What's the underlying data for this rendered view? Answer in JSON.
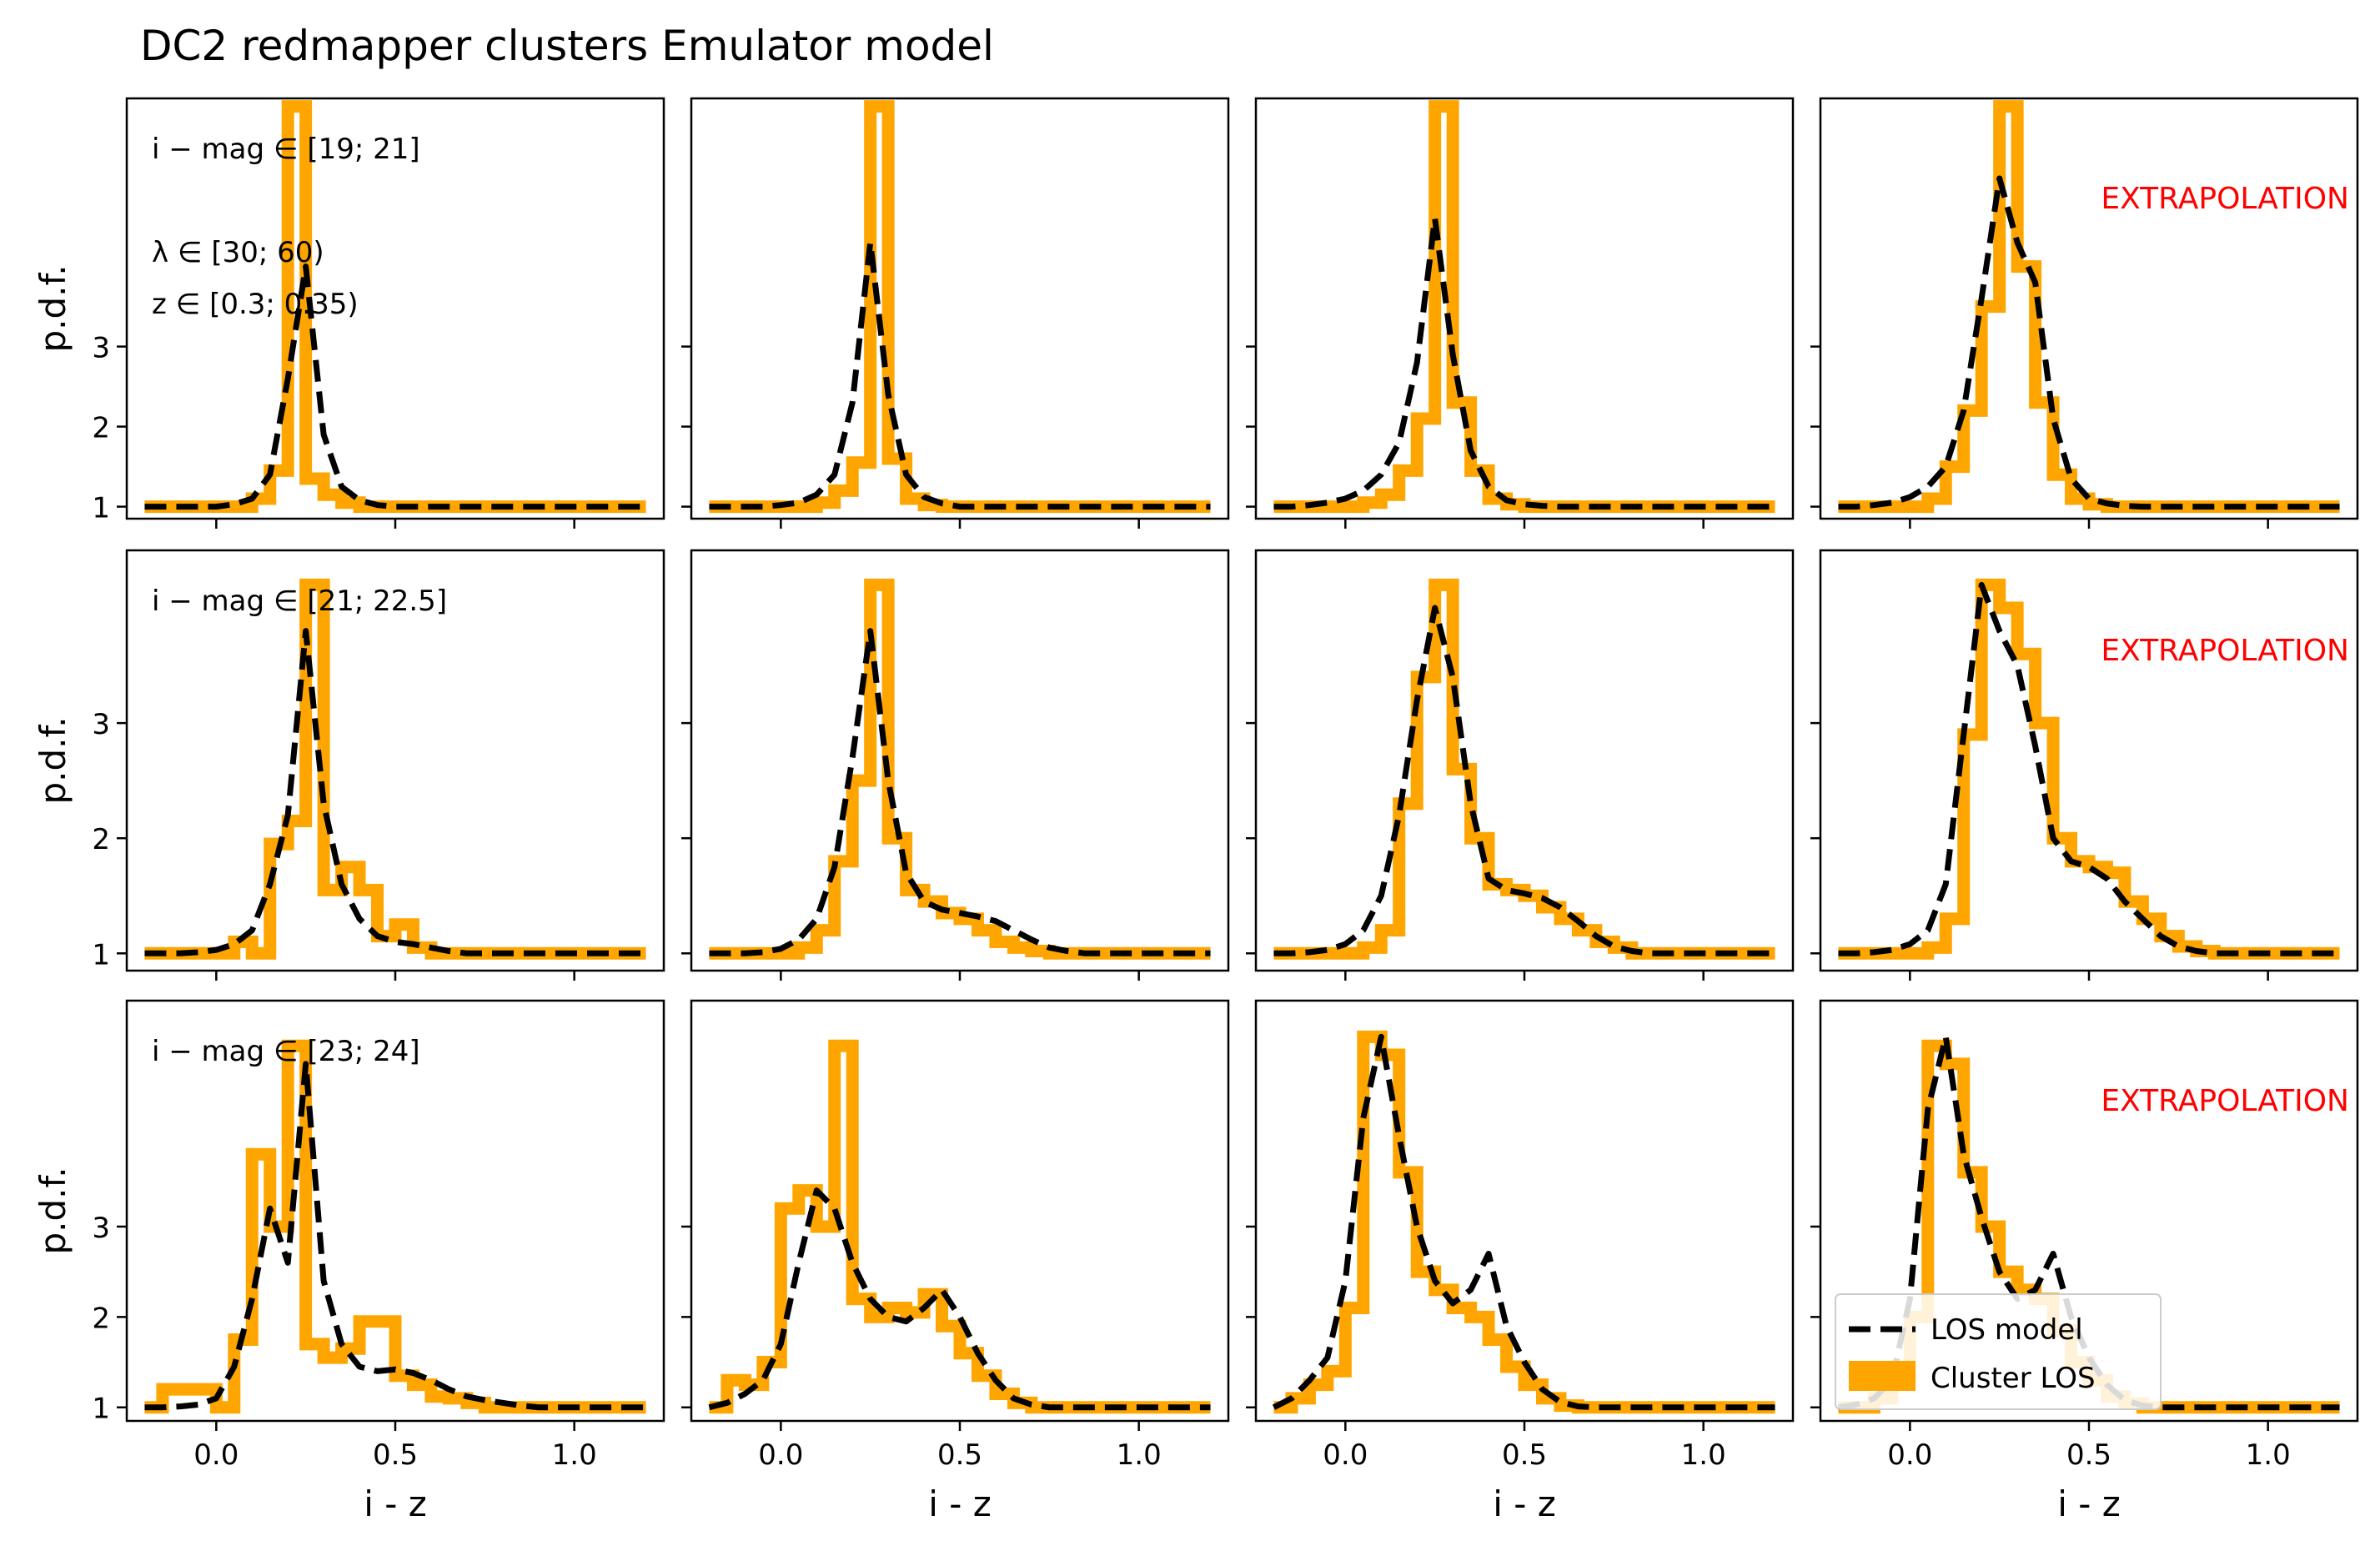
{
  "figure": {
    "title": "DC2 redmapper clusters Emulator model",
    "legend": {
      "placement": "lower-left (bottom-right panel)",
      "model_label": "LOS model",
      "hist_label": "Cluster LOS"
    },
    "extrapolation_label": "EXTRAPOLATION",
    "colors": {
      "hist": "#FFA500",
      "model": "#000000",
      "extrapolation": "#FF0000",
      "axes": "#000000"
    }
  },
  "rows": [
    {
      "ylabel": "p.d.f.",
      "annotation": [
        "i − mag ∈ [19; 21]",
        "",
        "λ ∈ [30; 60)",
        "z ∈ [0.3; 0.35)"
      ]
    },
    {
      "ylabel": "p.d.f.",
      "annotation": [
        "i − mag ∈ [21; 22.5]"
      ]
    },
    {
      "ylabel": "p.d.f.",
      "annotation": [
        "i − mag ∈ [23; 24]"
      ]
    }
  ],
  "columns": [
    {
      "xlabel": "i - z",
      "extrapolation": false
    },
    {
      "xlabel": "i - z",
      "extrapolation": false
    },
    {
      "xlabel": "i - z",
      "extrapolation": false
    },
    {
      "xlabel": "i - z",
      "extrapolation": true
    }
  ],
  "axes": {
    "xlim": [
      -0.25,
      1.25
    ],
    "xticks": [
      "0.0",
      "0.5",
      "1.0"
    ],
    "xtick_values": [
      0.0,
      0.5,
      1.0
    ],
    "yticks": [
      "1",
      "2",
      "3"
    ],
    "ytick_values": [
      1,
      2,
      3
    ],
    "ylim": [
      [
        0.85,
        6.1
      ],
      [
        0.85,
        4.5
      ],
      [
        0.85,
        5.5
      ]
    ]
  },
  "chart_data": {
    "type": "line",
    "grid": false,
    "layout": "3x4 small multiples",
    "xlabel": "i - z",
    "ylabel": "p.d.f.",
    "bin_edges": [
      -0.2,
      -0.15,
      -0.1,
      -0.05,
      0.0,
      0.05,
      0.1,
      0.15,
      0.2,
      0.25,
      0.3,
      0.35,
      0.4,
      0.45,
      0.5,
      0.55,
      0.6,
      0.65,
      0.7,
      0.75,
      0.8,
      0.85,
      0.9,
      0.95,
      1.0,
      1.05,
      1.1,
      1.15,
      1.2
    ],
    "model_x": [
      -0.2,
      -0.15,
      -0.1,
      -0.05,
      0.0,
      0.05,
      0.1,
      0.15,
      0.2,
      0.25,
      0.3,
      0.35,
      0.4,
      0.45,
      0.5,
      0.55,
      0.6,
      0.65,
      0.7,
      0.75,
      0.8,
      0.85,
      0.9,
      0.95,
      1.0,
      1.05,
      1.1,
      1.15,
      1.2
    ],
    "panels": [
      {
        "row": 0,
        "col": 0,
        "hist": [
          1.0,
          1.0,
          1.0,
          1.0,
          1.0,
          1.0,
          1.1,
          1.45,
          6.0,
          1.35,
          1.15,
          1.05,
          1.0,
          1.0,
          1.0,
          1.0,
          1.0,
          1.0,
          1.0,
          1.0,
          1.0,
          1.0,
          1.0,
          1.0,
          1.0,
          1.0,
          1.0,
          1.0
        ],
        "model": [
          1.0,
          1.0,
          1.0,
          1.0,
          1.0,
          1.03,
          1.1,
          1.4,
          2.6,
          4.0,
          1.9,
          1.25,
          1.08,
          1.02,
          1.0,
          1.0,
          1.0,
          1.0,
          1.0,
          1.0,
          1.0,
          1.0,
          1.0,
          1.0,
          1.0,
          1.0,
          1.0,
          1.0,
          1.0
        ]
      },
      {
        "row": 0,
        "col": 1,
        "hist": [
          1.0,
          1.0,
          1.0,
          1.0,
          1.0,
          1.0,
          1.05,
          1.2,
          1.55,
          6.0,
          1.6,
          1.1,
          1.02,
          1.0,
          1.0,
          1.0,
          1.0,
          1.0,
          1.0,
          1.0,
          1.0,
          1.0,
          1.0,
          1.0,
          1.0,
          1.0,
          1.0,
          1.0
        ],
        "model": [
          1.0,
          1.0,
          1.0,
          1.0,
          1.02,
          1.05,
          1.15,
          1.4,
          2.3,
          4.3,
          2.4,
          1.4,
          1.12,
          1.04,
          1.0,
          1.0,
          1.0,
          1.0,
          1.0,
          1.0,
          1.0,
          1.0,
          1.0,
          1.0,
          1.0,
          1.0,
          1.0,
          1.0,
          1.0
        ]
      },
      {
        "row": 0,
        "col": 2,
        "hist": [
          1.0,
          1.0,
          1.0,
          1.0,
          1.0,
          1.05,
          1.15,
          1.45,
          2.1,
          6.0,
          2.3,
          1.45,
          1.1,
          1.03,
          1.0,
          1.0,
          1.0,
          1.0,
          1.0,
          1.0,
          1.0,
          1.0,
          1.0,
          1.0,
          1.0,
          1.0,
          1.0,
          1.0
        ],
        "model": [
          1.0,
          1.0,
          1.02,
          1.05,
          1.1,
          1.2,
          1.4,
          1.8,
          2.8,
          4.6,
          2.9,
          1.7,
          1.25,
          1.08,
          1.03,
          1.01,
          1.0,
          1.0,
          1.0,
          1.0,
          1.0,
          1.0,
          1.0,
          1.0,
          1.0,
          1.0,
          1.0,
          1.0,
          1.0
        ]
      },
      {
        "row": 0,
        "col": 3,
        "hist": [
          1.0,
          1.0,
          1.0,
          1.0,
          1.0,
          1.1,
          1.5,
          2.2,
          3.5,
          6.0,
          4.0,
          2.3,
          1.4,
          1.1,
          1.03,
          1.0,
          1.0,
          1.0,
          1.0,
          1.0,
          1.0,
          1.0,
          1.0,
          1.0,
          1.0,
          1.0,
          1.0,
          1.0
        ],
        "model": [
          1.0,
          1.0,
          1.02,
          1.05,
          1.12,
          1.25,
          1.5,
          2.2,
          3.6,
          5.1,
          4.3,
          3.8,
          2.1,
          1.35,
          1.1,
          1.04,
          1.01,
          1.0,
          1.0,
          1.0,
          1.0,
          1.0,
          1.0,
          1.0,
          1.0,
          1.0,
          1.0,
          1.0,
          1.0
        ]
      },
      {
        "row": 1,
        "col": 0,
        "hist": [
          1.0,
          1.0,
          1.0,
          1.0,
          1.0,
          1.1,
          1.0,
          1.95,
          2.15,
          4.2,
          1.55,
          1.75,
          1.55,
          1.15,
          1.25,
          1.05,
          1.0,
          1.0,
          1.0,
          1.0,
          1.0,
          1.0,
          1.0,
          1.0,
          1.0,
          1.0,
          1.0,
          1.0
        ],
        "model": [
          1.0,
          1.0,
          1.0,
          1.01,
          1.03,
          1.08,
          1.2,
          1.6,
          2.2,
          3.8,
          2.3,
          1.6,
          1.3,
          1.15,
          1.1,
          1.08,
          1.05,
          1.02,
          1.0,
          1.0,
          1.0,
          1.0,
          1.0,
          1.0,
          1.0,
          1.0,
          1.0,
          1.0,
          1.0
        ]
      },
      {
        "row": 1,
        "col": 1,
        "hist": [
          1.0,
          1.0,
          1.0,
          1.0,
          1.0,
          1.05,
          1.2,
          1.8,
          2.5,
          4.2,
          2.0,
          1.55,
          1.45,
          1.35,
          1.3,
          1.2,
          1.1,
          1.05,
          1.02,
          1.0,
          1.0,
          1.0,
          1.0,
          1.0,
          1.0,
          1.0,
          1.0,
          1.0
        ],
        "model": [
          1.0,
          1.0,
          1.0,
          1.01,
          1.04,
          1.12,
          1.3,
          1.75,
          2.7,
          3.8,
          2.5,
          1.7,
          1.45,
          1.38,
          1.35,
          1.32,
          1.28,
          1.2,
          1.12,
          1.05,
          1.02,
          1.0,
          1.0,
          1.0,
          1.0,
          1.0,
          1.0,
          1.0,
          1.0
        ]
      },
      {
        "row": 1,
        "col": 2,
        "hist": [
          1.0,
          1.0,
          1.0,
          1.0,
          1.0,
          1.05,
          1.2,
          2.3,
          3.4,
          4.2,
          2.6,
          2.0,
          1.6,
          1.55,
          1.5,
          1.4,
          1.3,
          1.2,
          1.1,
          1.05,
          1.0,
          1.0,
          1.0,
          1.0,
          1.0,
          1.0,
          1.0,
          1.0
        ],
        "model": [
          1.0,
          1.0,
          1.01,
          1.03,
          1.08,
          1.2,
          1.5,
          2.2,
          3.2,
          4.0,
          3.4,
          2.3,
          1.65,
          1.55,
          1.52,
          1.48,
          1.4,
          1.28,
          1.15,
          1.06,
          1.02,
          1.0,
          1.0,
          1.0,
          1.0,
          1.0,
          1.0,
          1.0,
          1.0
        ]
      },
      {
        "row": 1,
        "col": 3,
        "hist": [
          1.0,
          1.0,
          1.0,
          1.0,
          1.0,
          1.05,
          1.3,
          2.9,
          4.2,
          4.0,
          3.6,
          3.0,
          2.0,
          1.8,
          1.75,
          1.7,
          1.45,
          1.3,
          1.15,
          1.06,
          1.02,
          1.0,
          1.0,
          1.0,
          1.0,
          1.0,
          1.0,
          1.0
        ],
        "model": [
          1.0,
          1.0,
          1.01,
          1.03,
          1.08,
          1.2,
          1.6,
          2.9,
          4.2,
          3.8,
          3.5,
          2.8,
          2.0,
          1.8,
          1.75,
          1.65,
          1.45,
          1.3,
          1.15,
          1.06,
          1.02,
          1.0,
          1.0,
          1.0,
          1.0,
          1.0,
          1.0,
          1.0,
          1.0
        ]
      },
      {
        "row": 2,
        "col": 0,
        "hist": [
          1.0,
          1.2,
          1.2,
          1.2,
          1.0,
          1.75,
          3.8,
          3.0,
          5.0,
          1.7,
          1.55,
          1.65,
          1.95,
          1.95,
          1.35,
          1.25,
          1.12,
          1.1,
          1.05,
          1.0,
          1.0,
          1.0,
          1.0,
          1.0,
          1.0,
          1.0,
          1.0,
          1.0
        ],
        "model": [
          1.0,
          1.0,
          1.01,
          1.03,
          1.1,
          1.45,
          2.2,
          3.2,
          2.6,
          4.8,
          2.4,
          1.7,
          1.45,
          1.4,
          1.42,
          1.38,
          1.3,
          1.2,
          1.12,
          1.08,
          1.05,
          1.02,
          1.0,
          1.0,
          1.0,
          1.0,
          1.0,
          1.0,
          1.0
        ]
      },
      {
        "row": 2,
        "col": 1,
        "hist": [
          1.0,
          1.3,
          1.25,
          1.5,
          3.2,
          3.4,
          3.0,
          5.0,
          2.2,
          2.0,
          2.1,
          2.05,
          2.25,
          1.9,
          1.6,
          1.35,
          1.15,
          1.05,
          1.0,
          1.0,
          1.0,
          1.0,
          1.0,
          1.0,
          1.0,
          1.0,
          1.0,
          1.0
        ],
        "model": [
          1.0,
          1.05,
          1.15,
          1.3,
          1.7,
          2.6,
          3.4,
          3.2,
          2.6,
          2.2,
          2.0,
          1.95,
          2.1,
          2.3,
          2.0,
          1.6,
          1.3,
          1.1,
          1.03,
          1.0,
          1.0,
          1.0,
          1.0,
          1.0,
          1.0,
          1.0,
          1.0,
          1.0,
          1.0
        ]
      },
      {
        "row": 2,
        "col": 2,
        "hist": [
          1.0,
          1.1,
          1.25,
          1.4,
          2.1,
          5.1,
          4.9,
          3.6,
          2.5,
          2.3,
          2.1,
          2.0,
          1.75,
          1.45,
          1.25,
          1.1,
          1.02,
          1.0,
          1.0,
          1.0,
          1.0,
          1.0,
          1.0,
          1.0,
          1.0,
          1.0,
          1.0,
          1.0
        ],
        "model": [
          1.0,
          1.1,
          1.3,
          1.55,
          2.4,
          4.2,
          5.1,
          4.0,
          3.0,
          2.4,
          2.15,
          2.3,
          2.7,
          1.9,
          1.5,
          1.2,
          1.06,
          1.01,
          1.0,
          1.0,
          1.0,
          1.0,
          1.0,
          1.0,
          1.0,
          1.0,
          1.0,
          1.0,
          1.0
        ]
      },
      {
        "row": 2,
        "col": 3,
        "hist": [
          1.0,
          1.0,
          1.1,
          1.3,
          2.0,
          5.0,
          4.8,
          3.6,
          3.0,
          2.5,
          2.3,
          2.2,
          1.85,
          1.5,
          1.3,
          1.12,
          1.04,
          1.0,
          1.0,
          1.0,
          1.0,
          1.0,
          1.0,
          1.0,
          1.0,
          1.0,
          1.0,
          1.0
        ],
        "model": [
          1.0,
          1.03,
          1.1,
          1.3,
          2.2,
          4.3,
          5.1,
          3.8,
          3.1,
          2.5,
          2.2,
          2.3,
          2.7,
          2.0,
          1.55,
          1.25,
          1.08,
          1.02,
          1.0,
          1.0,
          1.0,
          1.0,
          1.0,
          1.0,
          1.0,
          1.0,
          1.0,
          1.0,
          1.0
        ]
      }
    ]
  }
}
